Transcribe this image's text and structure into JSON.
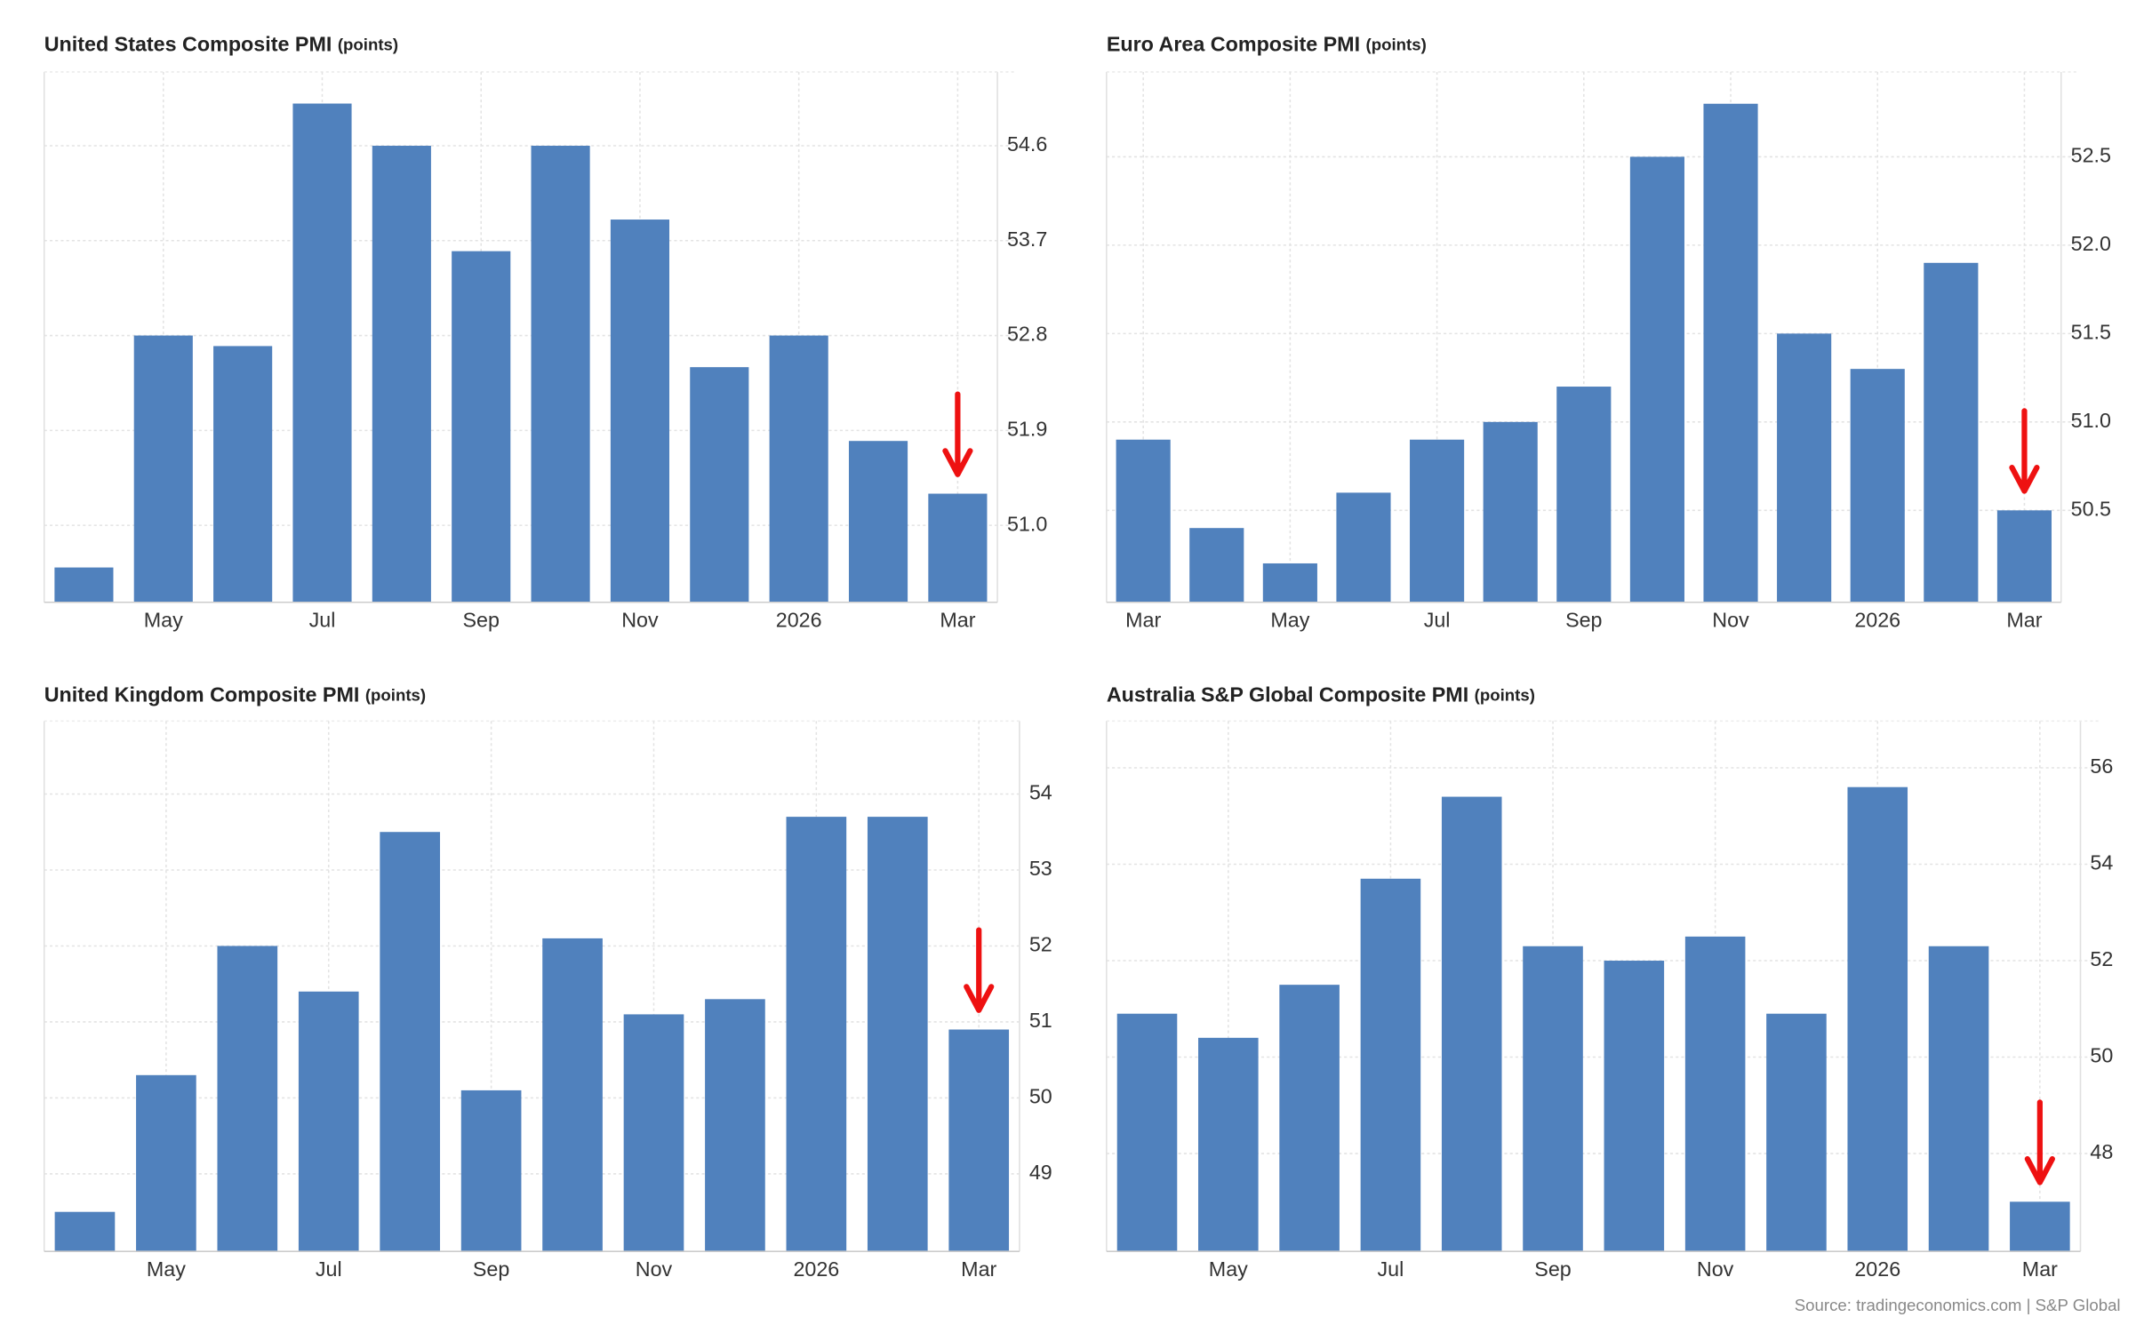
{
  "chart_data": [
    {
      "type": "bar",
      "title": "United States Composite PMI",
      "unit": "(points)",
      "categories": [
        null,
        "May",
        null,
        "Jul",
        null,
        "Sep",
        null,
        "Nov",
        null,
        "2026",
        null,
        "Mar"
      ],
      "values": [
        50.6,
        52.8,
        52.7,
        55.0,
        54.6,
        53.6,
        54.6,
        53.9,
        52.5,
        52.8,
        51.8,
        51.3
      ],
      "color": "#5081bd",
      "ylim": [
        50.27,
        55.3
      ],
      "yticks": [
        {
          "value": 51,
          "label": "51.0"
        },
        51.9,
        52.8,
        53.7,
        54.6
      ],
      "grid": true
    },
    {
      "type": "bar",
      "title": "Euro Area Composite PMI",
      "unit": "(points)",
      "categories": [
        "Mar",
        null,
        "May",
        null,
        "Jul",
        null,
        "Sep",
        null,
        "Nov",
        null,
        "2026",
        null,
        "Mar"
      ],
      "values": [
        50.9,
        50.4,
        50.2,
        50.6,
        50.9,
        51.0,
        51.2,
        52.5,
        52.8,
        51.5,
        51.3,
        51.9,
        50.5
      ],
      "color": "#5081bd",
      "ylim": [
        49.98,
        52.98
      ],
      "yticks": [
        50.5,
        {
          "value": 51,
          "label": "51.0"
        },
        51.5,
        {
          "value": 52,
          "label": "52.0"
        },
        52.5
      ],
      "grid": true
    },
    {
      "type": "bar",
      "title": "United Kingdom Composite PMI",
      "unit": "(points)",
      "categories": [
        null,
        "May",
        null,
        "Jul",
        null,
        "Sep",
        null,
        "Nov",
        null,
        "2026",
        null,
        "Mar"
      ],
      "values": [
        48.5,
        50.3,
        52.0,
        51.4,
        53.5,
        50.1,
        52.1,
        51.1,
        51.3,
        53.7,
        53.7,
        50.9
      ],
      "color": "#5081bd",
      "ylim": [
        47.98,
        54.96
      ],
      "yticks": [
        49,
        50,
        51,
        52,
        53,
        54
      ],
      "grid": true
    },
    {
      "type": "bar",
      "title": "Australia S&P Global Composite PMI",
      "unit": "(points)",
      "categories": [
        null,
        "May",
        null,
        "Jul",
        null,
        "Sep",
        null,
        "Nov",
        null,
        "2026",
        null,
        "Mar"
      ],
      "values": [
        50.9,
        50.4,
        51.5,
        53.7,
        55.4,
        52.3,
        52.0,
        52.5,
        50.9,
        55.6,
        52.3,
        47.0
      ],
      "color": "#5081bd",
      "ylim": [
        45.97,
        56.97
      ],
      "yticks": [
        48,
        50,
        52,
        54,
        56
      ],
      "grid": true
    }
  ],
  "source": "Source: tradingeconomics.com | S&P Global"
}
